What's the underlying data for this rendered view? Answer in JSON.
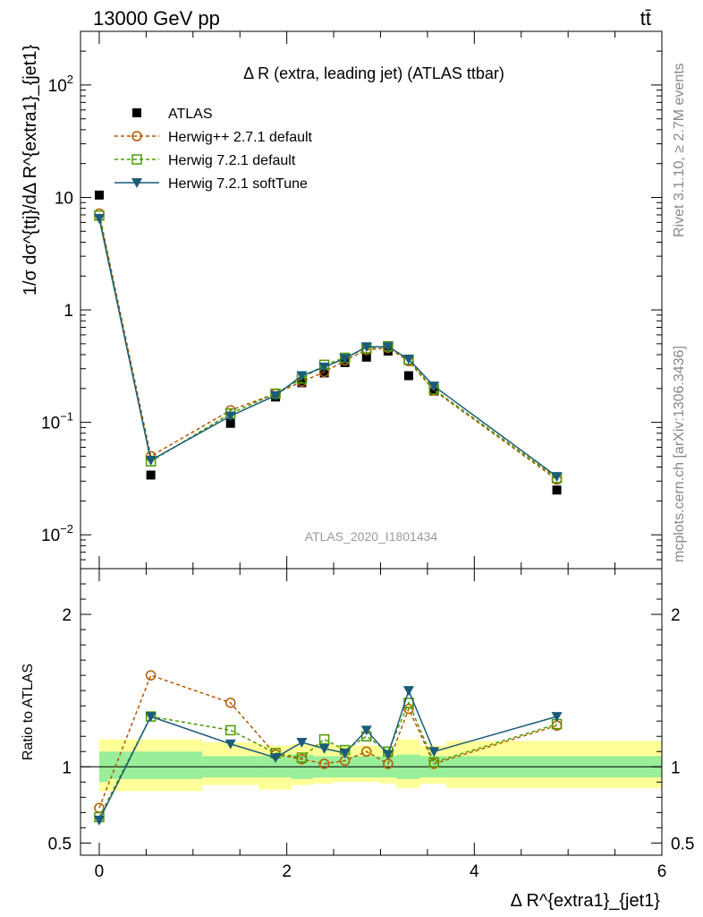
{
  "header": {
    "energy_label": "13000 GeV pp",
    "process_label": "tt̄"
  },
  "side_text": {
    "rivet": "Rivet 3.1.10, ≥ 2.7M events",
    "mcplots": "mcplots.cern.ch [arXiv:1306.3436]"
  },
  "chart_data": [
    {
      "type": "scatter",
      "panel": "main",
      "title": "Δ R (extra, leading jet) (ATLAS ttbar)",
      "watermark": "ATLAS_2020_I1801434",
      "ylabel": "1/σ dσ^{ttj}/dΔ R^{extra1}_{jet1}",
      "yscale": "log",
      "ylim": [
        0.005,
        300
      ],
      "xlim": [
        -0.2,
        6.0
      ],
      "legend_position": "top-left",
      "y_ticks": [
        {
          "value": 0.01,
          "base": "10",
          "exp": "−2"
        },
        {
          "value": 0.1,
          "base": "10",
          "exp": "−1"
        },
        {
          "value": 1,
          "base": "1",
          "exp": ""
        },
        {
          "value": 10,
          "base": "10",
          "exp": ""
        },
        {
          "value": 100,
          "base": "10",
          "exp": "2"
        }
      ],
      "x": [
        0.0,
        0.55,
        1.4,
        1.88,
        2.16,
        2.4,
        2.62,
        2.85,
        3.08,
        3.3,
        3.57,
        4.88
      ],
      "series": [
        {
          "name": "ATLAS",
          "color": "#000000",
          "marker": "square-filled",
          "values": [
            10.5,
            0.034,
            0.098,
            0.168,
            0.225,
            0.275,
            0.34,
            0.38,
            0.43,
            0.26,
            0.19,
            0.025
          ]
        },
        {
          "name": "Herwig++ 2.7.1 default",
          "color": "#b35900",
          "marker": "circle-open",
          "dash": true,
          "values": [
            7.2,
            0.05,
            0.128,
            0.18,
            0.23,
            0.28,
            0.355,
            0.44,
            0.46,
            0.35,
            0.192,
            0.031
          ]
        },
        {
          "name": "Herwig 7.2.1 default",
          "color": "#4c9a00",
          "marker": "square-open",
          "dash": true,
          "values": [
            6.9,
            0.045,
            0.12,
            0.18,
            0.245,
            0.325,
            0.375,
            0.455,
            0.475,
            0.36,
            0.196,
            0.032
          ]
        },
        {
          "name": "Herwig 7.2.1 softTune",
          "color": "#1a5c7a",
          "marker": "triangle-down",
          "dash": false,
          "values": [
            6.5,
            0.046,
            0.114,
            0.173,
            0.26,
            0.31,
            0.37,
            0.47,
            0.47,
            0.365,
            0.21,
            0.033
          ]
        }
      ]
    },
    {
      "type": "scatter",
      "panel": "ratio",
      "ylabel": "Ratio to ATLAS",
      "xlabel": "Δ R^{extra1}_{jet1}",
      "ylim": [
        0.42,
        2.3
      ],
      "xlim": [
        -0.2,
        6.0
      ],
      "y_ticks": [
        0.5,
        1,
        2
      ],
      "y_tick_labels": [
        "0.5",
        "1",
        "2"
      ],
      "x_ticks": [
        0,
        2,
        4,
        6
      ],
      "x_tick_labels": [
        "0",
        "2",
        "4",
        "6"
      ],
      "x": [
        0.0,
        0.55,
        1.4,
        1.88,
        2.16,
        2.4,
        2.62,
        2.85,
        3.08,
        3.3,
        3.57,
        4.88
      ],
      "bands": {
        "edges": [
          0.0,
          0.1,
          1.1,
          1.7,
          2.05,
          2.28,
          2.5,
          2.72,
          3.0,
          3.17,
          3.42,
          3.7,
          6.0
        ],
        "stat_low": [
          0.9,
          0.92,
          0.93,
          0.93,
          0.92,
          0.93,
          0.93,
          0.93,
          0.93,
          0.92,
          0.93,
          0.93
        ],
        "stat_high": [
          1.1,
          1.1,
          1.07,
          1.07,
          1.08,
          1.07,
          1.07,
          1.07,
          1.07,
          1.08,
          1.07,
          1.07
        ],
        "total_low": [
          0.84,
          0.84,
          0.88,
          0.85,
          0.88,
          0.89,
          0.9,
          0.9,
          0.89,
          0.86,
          0.89,
          0.86
        ],
        "total_high": [
          1.18,
          1.18,
          1.16,
          1.14,
          1.15,
          1.15,
          1.14,
          1.14,
          1.12,
          1.18,
          1.14,
          1.17
        ],
        "stat_color": "#99ee99",
        "total_color": "#ffff99"
      },
      "series": [
        {
          "name": "Herwig++ 2.7.1 default",
          "color": "#b35900",
          "marker": "circle-open",
          "dash": true,
          "values": [
            0.73,
            1.6,
            1.42,
            1.08,
            1.05,
            1.02,
            1.04,
            1.1,
            1.02,
            1.38,
            1.02,
            1.27
          ]
        },
        {
          "name": "Herwig 7.2.1 default",
          "color": "#4c9a00",
          "marker": "square-open",
          "dash": true,
          "values": [
            0.67,
            1.33,
            1.24,
            1.09,
            1.06,
            1.18,
            1.11,
            1.2,
            1.1,
            1.42,
            1.03,
            1.28
          ]
        },
        {
          "name": "Herwig 7.2.1 softTune",
          "color": "#1a5c7a",
          "marker": "triangle-down",
          "dash": false,
          "values": [
            0.65,
            1.33,
            1.15,
            1.06,
            1.16,
            1.12,
            1.09,
            1.24,
            1.08,
            1.5,
            1.1,
            1.33
          ]
        }
      ]
    }
  ]
}
